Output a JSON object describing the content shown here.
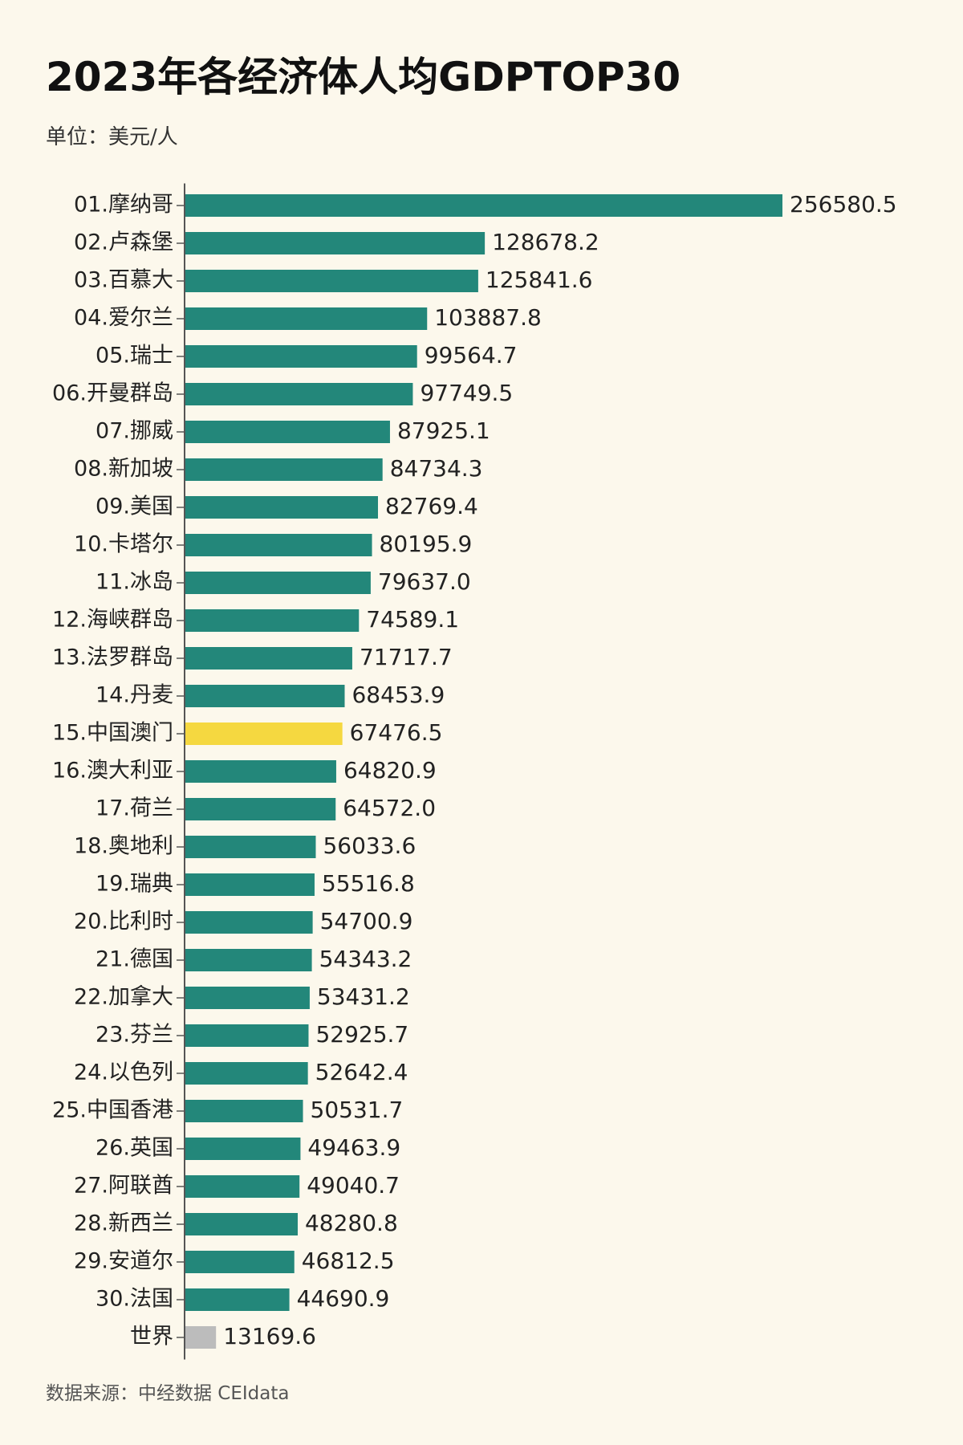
{
  "chart_data": {
    "type": "bar",
    "orientation": "horizontal",
    "title": "2023年各经济体人均GDPTOP30",
    "unit": "单位：美元/人",
    "source": "数据来源：中经数据 CEIdata",
    "xlim": [
      0,
      256580.5
    ],
    "categories": [
      "01.摩纳哥",
      "02.卢森堡",
      "03.百慕大",
      "04.爱尔兰",
      "05.瑞士",
      "06.开曼群岛",
      "07.挪威",
      "08.新加坡",
      "09.美国",
      "10.卡塔尔",
      "11.冰岛",
      "12.海峡群岛",
      "13.法罗群岛",
      "14.丹麦",
      "15.中国澳门",
      "16.澳大利亚",
      "17.荷兰",
      "18.奥地利",
      "19.瑞典",
      "20.比利时",
      "21.德国",
      "22.加拿大",
      "23.芬兰",
      "24.以色列",
      "25.中国香港",
      "26.英国",
      "27.阿联酋",
      "28.新西兰",
      "29.安道尔",
      "30.法国",
      "世界"
    ],
    "values": [
      256580.5,
      128678.2,
      125841.6,
      103887.8,
      99564.7,
      97749.5,
      87925.1,
      84734.3,
      82769.4,
      80195.9,
      79637.0,
      74589.1,
      71717.7,
      68453.9,
      67476.5,
      64820.9,
      64572.0,
      56033.6,
      55516.8,
      54700.9,
      54343.2,
      53431.2,
      52925.7,
      52642.4,
      50531.7,
      49463.9,
      49040.7,
      48280.8,
      46812.5,
      44690.9,
      13169.6
    ],
    "value_labels": [
      "256580.5",
      "128678.2",
      "125841.6",
      "103887.8",
      "99564.7",
      "97749.5",
      "87925.1",
      "84734.3",
      "82769.4",
      "80195.9",
      "79637.0",
      "74589.1",
      "71717.7",
      "68453.9",
      "67476.5",
      "64820.9",
      "64572.0",
      "56033.6",
      "55516.8",
      "54700.9",
      "54343.2",
      "53431.2",
      "52925.7",
      "52642.4",
      "50531.7",
      "49463.9",
      "49040.7",
      "48280.8",
      "46812.5",
      "44690.9",
      "13169.6"
    ],
    "highlight": {
      "15.中国澳门": "#f5d840",
      "世界": "#bcbcbc"
    },
    "default_color": "#23877a",
    "axis_color": "#555555"
  }
}
